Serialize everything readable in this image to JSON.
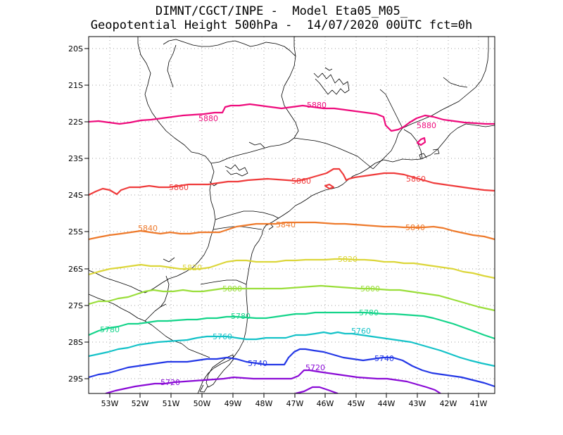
{
  "title": {
    "line1": "DIMNT/CGCT/INPE -  Model Eta05_M05_",
    "line2": "Geopotential Height 500hPa -  14/07/2020 00UTC fct=0h"
  },
  "axes": {
    "lon_labels": [
      "53W",
      "52W",
      "51W",
      "50W",
      "49W",
      "48W",
      "47W",
      "46W",
      "45W",
      "44W",
      "43W",
      "42W",
      "41W"
    ],
    "lat_labels": [
      "20S",
      "21S",
      "22S",
      "23S",
      "24S",
      "25S",
      "26S",
      "27S",
      "28S",
      "29S"
    ]
  },
  "colors": {
    "c5880": "#ee0b7c",
    "c5860": "#ef3c3c",
    "c5840": "#ee7a2c",
    "c5820": "#dcd63a",
    "c5800": "#9ade3a",
    "c5780": "#14d48a",
    "c5760": "#14c2c8",
    "c5740": "#2438e6",
    "c5720": "#8a0bd6",
    "coast": "#000000",
    "grid": "#a0a0a0"
  },
  "contours": [
    {
      "level": 5880,
      "label": "5880",
      "color": "#ee0b7c"
    },
    {
      "level": 5860,
      "label": "5860",
      "color": "#ef3c3c"
    },
    {
      "level": 5840,
      "label": "5840",
      "color": "#ee7a2c"
    },
    {
      "level": 5820,
      "label": "5820",
      "color": "#dcd63a"
    },
    {
      "level": 5800,
      "label": "5800",
      "color": "#9ade3a"
    },
    {
      "level": 5780,
      "label": "5780",
      "color": "#14d48a"
    },
    {
      "level": 5760,
      "label": "5760",
      "color": "#14c2c8"
    },
    {
      "level": 5740,
      "label": "5740",
      "color": "#2438e6"
    },
    {
      "level": 5720,
      "label": "5720",
      "color": "#8a0bd6"
    }
  ]
}
